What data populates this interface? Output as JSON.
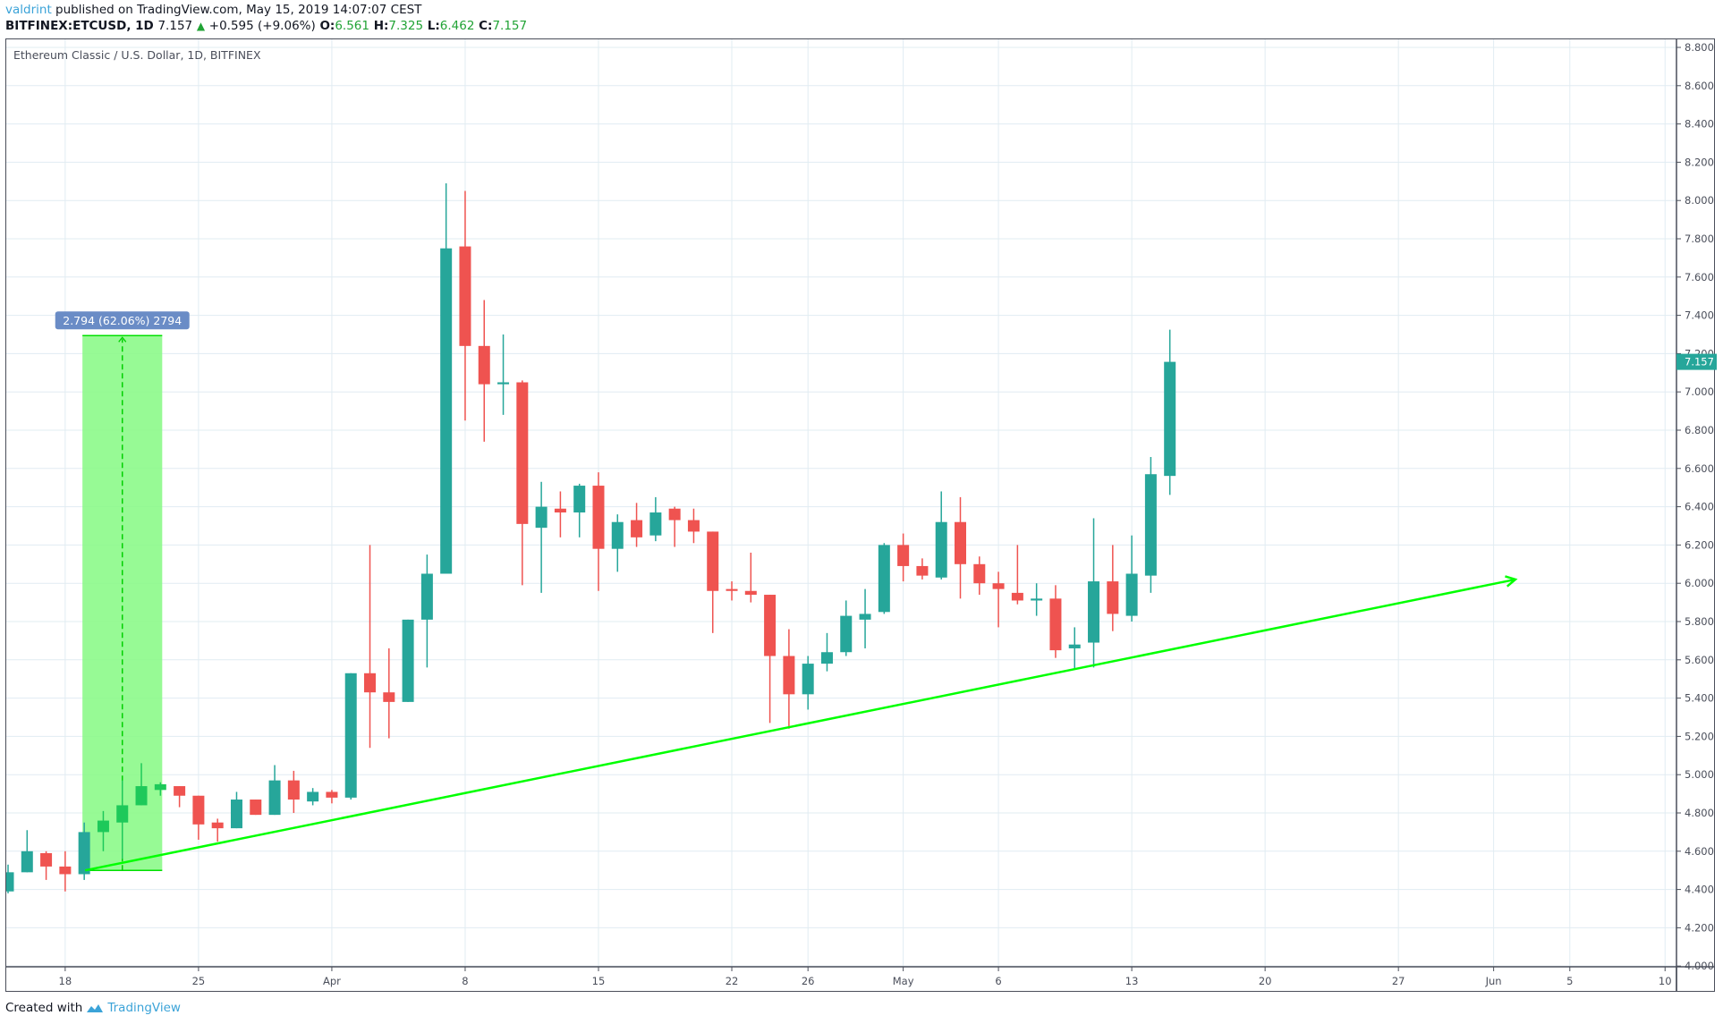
{
  "header": {
    "author": "valdrint",
    "published_text": "published on TradingView.com, May 15, 2019 14:07:07 CEST",
    "symbol": "BITFINEX:ETCUSD, 1D",
    "last": "7.157",
    "change": "+0.595 (+9.06%)",
    "o_label": "O:",
    "o": "6.561",
    "h_label": "H:",
    "h": "7.325",
    "l_label": "L:",
    "l": "6.462",
    "c_label": "C:",
    "c": "7.157"
  },
  "legend": "Ethereum Classic / U.S. Dollar, 1D, BITFINEX",
  "footer": {
    "created_with": "Created with",
    "brand": "TradingView"
  },
  "colors": {
    "up": "#26a69a",
    "down": "#ef5350",
    "grid": "#e1ecf2",
    "axis": "#4a4e5a",
    "trend": "#00ff00",
    "measure_fill": "#8cf98a",
    "measure_label_bg": "#6a8cc6",
    "last_price_bg": "#26a69a"
  },
  "measure_label": "2.794 (62.06%) 2794",
  "last_price_label": "7.157",
  "chart_data": {
    "type": "candlestick",
    "title": "Ethereum Classic / U.S. Dollar, 1D, BITFINEX",
    "xlabel": "",
    "ylabel": "",
    "ylim": [
      4.0,
      8.8
    ],
    "grid": true,
    "y_ticks": [
      "4.000",
      "4.200",
      "4.400",
      "4.600",
      "4.800",
      "5.000",
      "5.200",
      "5.400",
      "5.600",
      "5.800",
      "6.000",
      "6.200",
      "6.400",
      "6.600",
      "6.800",
      "7.000",
      "7.200",
      "7.400",
      "7.600",
      "7.800",
      "8.000",
      "8.200",
      "8.400",
      "8.600",
      "8.800"
    ],
    "x_ticks": [
      {
        "label": "18",
        "day": 3
      },
      {
        "label": "25",
        "day": 10
      },
      {
        "label": "Apr",
        "day": 17
      },
      {
        "label": "8",
        "day": 24
      },
      {
        "label": "15",
        "day": 31
      },
      {
        "label": "22",
        "day": 38
      },
      {
        "label": "26",
        "day": 42
      },
      {
        "label": "May",
        "day": 47
      },
      {
        "label": "6",
        "day": 52
      },
      {
        "label": "13",
        "day": 59
      },
      {
        "label": "20",
        "day": 66
      },
      {
        "label": "27",
        "day": 73
      },
      {
        "label": "Jun",
        "day": 78
      },
      {
        "label": "5",
        "day": 82
      },
      {
        "label": "10",
        "day": 87
      }
    ],
    "start_date": "2019-03-15",
    "candles": [
      {
        "d": "Mar 15",
        "o": 4.39,
        "h": 4.53,
        "l": 4.38,
        "c": 4.49
      },
      {
        "d": "Mar 16",
        "o": 4.49,
        "h": 4.71,
        "l": 4.49,
        "c": 4.6
      },
      {
        "d": "Mar 17",
        "o": 4.59,
        "h": 4.6,
        "l": 4.45,
        "c": 4.52
      },
      {
        "d": "Mar 18",
        "o": 4.52,
        "h": 4.6,
        "l": 4.39,
        "c": 4.48
      },
      {
        "d": "Mar 19",
        "o": 4.48,
        "h": 4.75,
        "l": 4.45,
        "c": 4.7
      },
      {
        "d": "Mar 20",
        "o": 4.7,
        "h": 4.81,
        "l": 4.6,
        "c": 4.76
      },
      {
        "d": "Mar 21",
        "o": 4.75,
        "h": 4.97,
        "l": 4.56,
        "c": 4.84
      },
      {
        "d": "Mar 22",
        "o": 4.84,
        "h": 5.06,
        "l": 4.84,
        "c": 4.94
      },
      {
        "d": "Mar 23",
        "o": 4.92,
        "h": 4.96,
        "l": 4.89,
        "c": 4.95
      },
      {
        "d": "Mar 24",
        "o": 4.94,
        "h": 4.94,
        "l": 4.83,
        "c": 4.89
      },
      {
        "d": "Mar 25",
        "o": 4.89,
        "h": 4.89,
        "l": 4.66,
        "c": 4.74
      },
      {
        "d": "Mar 26",
        "o": 4.75,
        "h": 4.77,
        "l": 4.65,
        "c": 4.72
      },
      {
        "d": "Mar 27",
        "o": 4.72,
        "h": 4.91,
        "l": 4.72,
        "c": 4.87
      },
      {
        "d": "Mar 28",
        "o": 4.87,
        "h": 4.87,
        "l": 4.79,
        "c": 4.79
      },
      {
        "d": "Mar 29",
        "o": 4.79,
        "h": 5.05,
        "l": 4.79,
        "c": 4.97
      },
      {
        "d": "Mar 30",
        "o": 4.97,
        "h": 5.02,
        "l": 4.8,
        "c": 4.87
      },
      {
        "d": "Mar 31",
        "o": 4.86,
        "h": 4.93,
        "l": 4.84,
        "c": 4.91
      },
      {
        "d": "Apr 1",
        "o": 4.91,
        "h": 4.92,
        "l": 4.85,
        "c": 4.88
      },
      {
        "d": "Apr 2",
        "o": 4.88,
        "h": 5.53,
        "l": 4.87,
        "c": 5.53
      },
      {
        "d": "Apr 3",
        "o": 5.53,
        "h": 6.2,
        "l": 5.14,
        "c": 5.43
      },
      {
        "d": "Apr 4",
        "o": 5.43,
        "h": 5.66,
        "l": 5.19,
        "c": 5.38
      },
      {
        "d": "Apr 5",
        "o": 5.38,
        "h": 5.81,
        "l": 5.38,
        "c": 5.81
      },
      {
        "d": "Apr 6",
        "o": 5.81,
        "h": 6.15,
        "l": 5.56,
        "c": 6.05
      },
      {
        "d": "Apr 7",
        "o": 6.05,
        "h": 8.09,
        "l": 6.05,
        "c": 7.75
      },
      {
        "d": "Apr 8",
        "o": 7.76,
        "h": 8.05,
        "l": 6.85,
        "c": 7.24
      },
      {
        "d": "Apr 9",
        "o": 7.24,
        "h": 7.48,
        "l": 6.74,
        "c": 7.04
      },
      {
        "d": "Apr 10",
        "o": 7.04,
        "h": 7.3,
        "l": 6.88,
        "c": 7.05
      },
      {
        "d": "Apr 11",
        "o": 7.05,
        "h": 7.06,
        "l": 5.99,
        "c": 6.31
      },
      {
        "d": "Apr 12",
        "o": 6.29,
        "h": 6.53,
        "l": 5.95,
        "c": 6.4
      },
      {
        "d": "Apr 13",
        "o": 6.39,
        "h": 6.48,
        "l": 6.24,
        "c": 6.37
      },
      {
        "d": "Apr 14",
        "o": 6.37,
        "h": 6.52,
        "l": 6.24,
        "c": 6.51
      },
      {
        "d": "Apr 15",
        "o": 6.51,
        "h": 6.58,
        "l": 5.96,
        "c": 6.18
      },
      {
        "d": "Apr 16",
        "o": 6.18,
        "h": 6.36,
        "l": 6.06,
        "c": 6.32
      },
      {
        "d": "Apr 17",
        "o": 6.33,
        "h": 6.42,
        "l": 6.19,
        "c": 6.24
      },
      {
        "d": "Apr 18",
        "o": 6.25,
        "h": 6.45,
        "l": 6.22,
        "c": 6.37
      },
      {
        "d": "Apr 19",
        "o": 6.39,
        "h": 6.4,
        "l": 6.19,
        "c": 6.33
      },
      {
        "d": "Apr 20",
        "o": 6.33,
        "h": 6.39,
        "l": 6.21,
        "c": 6.27
      },
      {
        "d": "Apr 21",
        "o": 6.27,
        "h": 6.27,
        "l": 5.74,
        "c": 5.96
      },
      {
        "d": "Apr 22",
        "o": 5.97,
        "h": 6.01,
        "l": 5.91,
        "c": 5.96
      },
      {
        "d": "Apr 23",
        "o": 5.96,
        "h": 6.16,
        "l": 5.9,
        "c": 5.94
      },
      {
        "d": "Apr 24",
        "o": 5.94,
        "h": 5.94,
        "l": 5.27,
        "c": 5.62
      },
      {
        "d": "Apr 25",
        "o": 5.62,
        "h": 5.76,
        "l": 5.24,
        "c": 5.42
      },
      {
        "d": "Apr 26",
        "o": 5.42,
        "h": 5.62,
        "l": 5.34,
        "c": 5.58
      },
      {
        "d": "Apr 27",
        "o": 5.58,
        "h": 5.74,
        "l": 5.54,
        "c": 5.64
      },
      {
        "d": "Apr 28",
        "o": 5.64,
        "h": 5.91,
        "l": 5.62,
        "c": 5.83
      },
      {
        "d": "Apr 29",
        "o": 5.81,
        "h": 5.97,
        "l": 5.66,
        "c": 5.84
      },
      {
        "d": "Apr 30",
        "o": 5.85,
        "h": 6.21,
        "l": 5.84,
        "c": 6.2
      },
      {
        "d": "May 1",
        "o": 6.2,
        "h": 6.26,
        "l": 6.01,
        "c": 6.09
      },
      {
        "d": "May 2",
        "o": 6.09,
        "h": 6.13,
        "l": 6.02,
        "c": 6.04
      },
      {
        "d": "May 3",
        "o": 6.03,
        "h": 6.48,
        "l": 6.02,
        "c": 6.32
      },
      {
        "d": "May 4",
        "o": 6.32,
        "h": 6.45,
        "l": 5.92,
        "c": 6.1
      },
      {
        "d": "May 5",
        "o": 6.1,
        "h": 6.14,
        "l": 5.94,
        "c": 6.0
      },
      {
        "d": "May 6",
        "o": 6.0,
        "h": 6.06,
        "l": 5.77,
        "c": 5.97
      },
      {
        "d": "May 7",
        "o": 5.95,
        "h": 6.2,
        "l": 5.89,
        "c": 5.91
      },
      {
        "d": "May 8",
        "o": 5.91,
        "h": 6.0,
        "l": 5.83,
        "c": 5.92
      },
      {
        "d": "May 9",
        "o": 5.92,
        "h": 5.99,
        "l": 5.61,
        "c": 5.65
      },
      {
        "d": "May 10",
        "o": 5.66,
        "h": 5.77,
        "l": 5.55,
        "c": 5.68
      },
      {
        "d": "May 11",
        "o": 5.69,
        "h": 6.34,
        "l": 5.56,
        "c": 6.01
      },
      {
        "d": "May 12",
        "o": 6.01,
        "h": 6.2,
        "l": 5.75,
        "c": 5.84
      },
      {
        "d": "May 13",
        "o": 5.83,
        "h": 6.25,
        "l": 5.8,
        "c": 6.05
      },
      {
        "d": "May 14",
        "o": 6.04,
        "h": 6.66,
        "l": 5.95,
        "c": 6.57
      },
      {
        "d": "May 15",
        "o": 6.561,
        "h": 7.325,
        "l": 6.462,
        "c": 7.157
      }
    ],
    "drawings": {
      "measure": {
        "from_day": 4,
        "to_day": 8,
        "low": 4.5,
        "high": 7.294,
        "label": "2.794 (62.06%) 2794"
      },
      "trendline": {
        "from_day": 4,
        "from_price": 4.5,
        "to_day": 79,
        "to_price": 6.02,
        "arrow": true
      }
    },
    "last_price": 7.157
  }
}
